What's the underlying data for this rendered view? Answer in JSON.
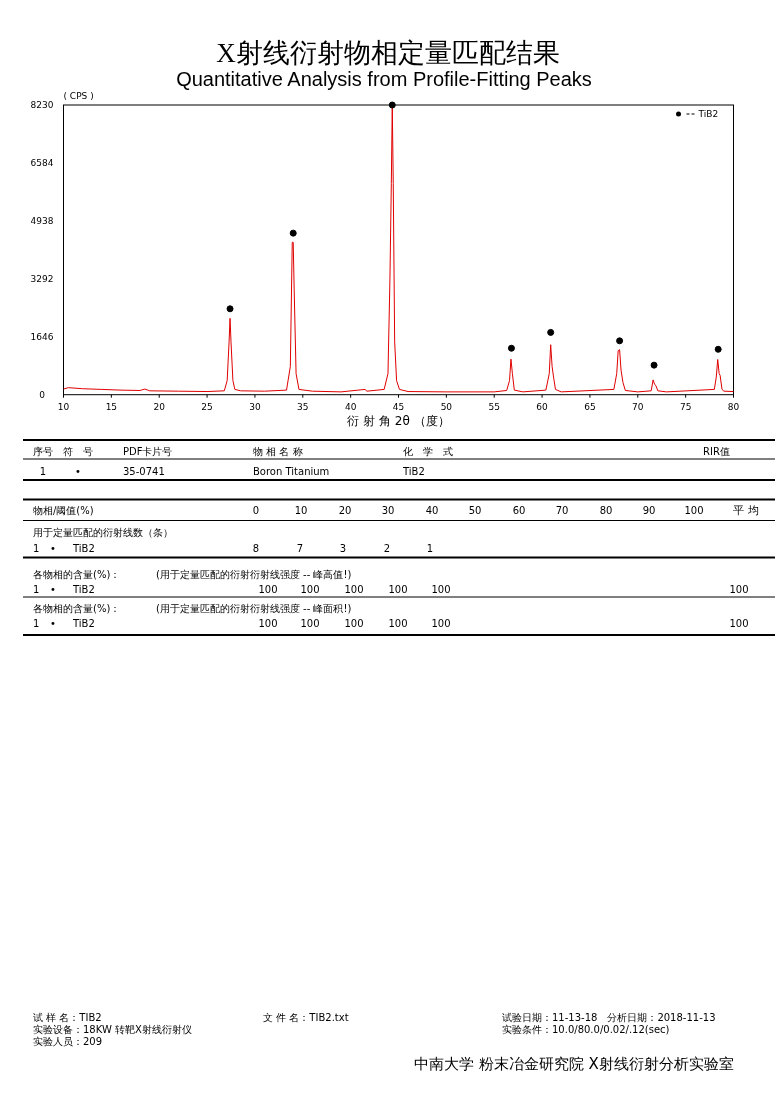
{
  "chart_data": {
    "type": "line",
    "title": "X射线衍射物相定量匹配结果",
    "subtitle": "Quantitative Analysis from Profile-Fitting Peaks",
    "xlabel": "衍 射 角 2θ （度）",
    "ylabel": "( CPS )",
    "xlim": [
      10,
      80
    ],
    "xticks": [
      10,
      15,
      20,
      25,
      30,
      35,
      40,
      45,
      50,
      55,
      60,
      65,
      70,
      75,
      80
    ],
    "ylim": [
      0,
      8230
    ],
    "yticks": [
      0,
      1646,
      3292,
      4938,
      6584,
      8230
    ],
    "grid": false,
    "legend": "top right",
    "series": [
      {
        "color": "#e00000",
        "x": [
          10,
          10.5,
          12,
          14,
          16,
          18,
          18.5,
          19,
          22,
          25,
          26.8,
          27.1,
          27.3,
          27.4,
          27.5,
          27.7,
          27.9,
          28.5,
          31,
          33.3,
          33.7,
          33.9,
          34.0,
          34.1,
          34.3,
          34.6,
          36,
          39,
          41.5,
          41.7,
          43.5,
          43.9,
          44.1,
          44.25,
          44.35,
          44.45,
          44.6,
          44.8,
          45.1,
          46,
          50,
          55,
          56.3,
          56.6,
          56.75,
          56.9,
          57.1,
          58,
          60.4,
          60.75,
          60.9,
          61.05,
          61.2,
          61.4,
          62,
          67.5,
          67.8,
          67.95,
          68.1,
          68.25,
          68.45,
          68.7,
          70,
          71.4,
          71.6,
          71.75,
          71.9,
          72.1,
          73,
          78,
          78.2,
          78.35,
          78.5,
          78.6,
          78.8,
          79,
          80
        ],
        "values": [
          160,
          200,
          170,
          150,
          130,
          120,
          160,
          110,
          100,
          90,
          110,
          400,
          1500,
          2170,
          1500,
          400,
          150,
          110,
          100,
          130,
          800,
          4330,
          4330,
          3000,
          600,
          150,
          100,
          80,
          150,
          100,
          150,
          600,
          3200,
          6000,
          8230,
          6000,
          1500,
          400,
          150,
          90,
          80,
          80,
          120,
          400,
          1010,
          600,
          130,
          80,
          130,
          600,
          1420,
          800,
          500,
          150,
          80,
          150,
          600,
          1250,
          1280,
          700,
          350,
          120,
          80,
          110,
          420,
          300,
          250,
          110,
          80,
          150,
          500,
          1000,
          600,
          550,
          150,
          100,
          90
        ]
      },
      {
        "type": "scatter",
        "name": "TiB2",
        "color": "#000000",
        "marker": "circle",
        "x": [
          27.4,
          34.0,
          44.35,
          56.8,
          60.9,
          68.1,
          71.7,
          78.4
        ],
        "values": [
          2440,
          4590,
          8230,
          1320,
          1770,
          1530,
          840,
          1290
        ]
      }
    ],
    "annotations": [
      "序号",
      "符　号",
      "PDF卡片号",
      "物 相 名 称",
      "化　学　式",
      "RIR值",
      "1",
      "•",
      "35-0741",
      "Boron Titanium",
      "TiB2",
      "物相/阈值(%)",
      "0",
      "10",
      "20",
      "30",
      "40",
      "50",
      "60",
      "70",
      "80",
      "90",
      "100",
      "平 均",
      "用于定量匹配的衍射线数（条）",
      "1",
      "•",
      "TiB2",
      "8",
      "7",
      "3",
      "2",
      "1",
      "各物相的含量(%)：",
      "(用于定量匹配的衍射衍射线强度 -- 峰高值!)",
      "1",
      "•",
      "TiB2",
      "100",
      "100",
      "100",
      "100",
      "100",
      "100",
      "各物相的含量(%)：",
      "(用于定量匹配的衍射衍射线强度 -- 峰面积!)",
      "1",
      "•",
      "TiB2",
      "100",
      "100",
      "100",
      "100",
      "100",
      "100",
      "试 样 名：TIB2",
      "文 件 名：TIB2.txt",
      "试验日期：11-13-18　分析日期：2018-11-13",
      "实验设备：18KW 转靶X射线衍射仪",
      "实验条件：10.0/80.0/0.02/.12(sec)",
      "实验人员：209",
      "中南大学 粉末冶金研究院 X射线衍射分析实验室"
    ]
  }
}
